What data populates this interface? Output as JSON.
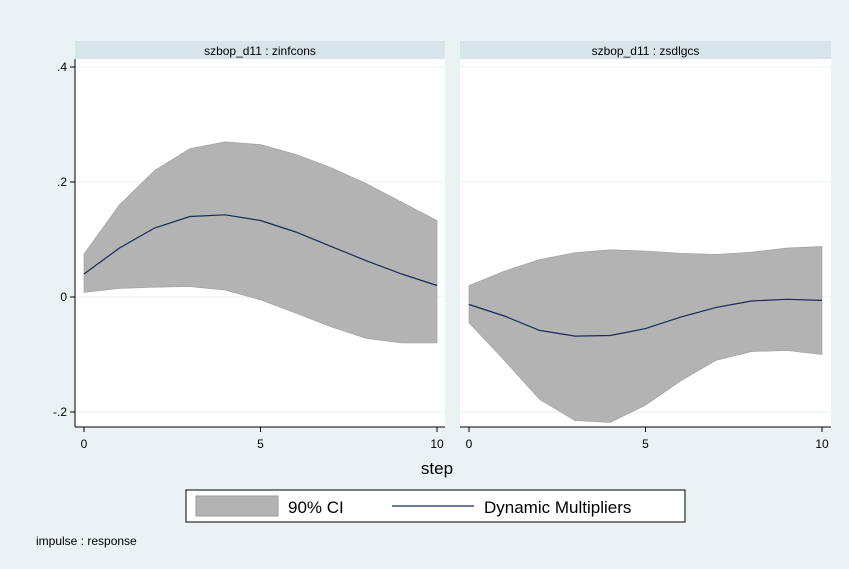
{
  "colors": {
    "outer_bg": "#eaf2f3",
    "plot_bg": "#ffffff",
    "strip_bg": "#d7e5ea",
    "ci_fill": "#b3b3b3",
    "ci_edge": "#9c9c9c",
    "line": "#1a2a55",
    "grid": "#e8f0f2",
    "text": "#000000"
  },
  "xlabel": "step",
  "note": "impulse : response",
  "legend": {
    "ci_label": "90% CI",
    "line_label": "Dynamic Multipliers",
    "placement": "bottom"
  },
  "chart_data": {
    "type": "line",
    "y_ticks": [
      -0.2,
      0,
      0.2,
      0.4
    ],
    "y_tick_labels": [
      "-.2",
      "0",
      ".2",
      ".4"
    ],
    "x_ticks": [
      0,
      5,
      10
    ],
    "x_tick_labels": [
      "0",
      "5",
      "10"
    ],
    "xlim": [
      0,
      10
    ],
    "ylim": [
      -0.22,
      0.45
    ],
    "grid": true,
    "panels": [
      {
        "title": "szbop_d11 : zinfcons",
        "x": [
          0,
          1,
          2,
          3,
          4,
          5,
          6,
          7,
          8,
          9,
          10
        ],
        "series": [
          {
            "name": "Dynamic Multipliers",
            "values": [
              0.04,
              0.085,
              0.12,
              0.14,
              0.143,
              0.133,
              0.113,
              0.088,
              0.063,
              0.04,
              0.02
            ]
          },
          {
            "name": "90% CI",
            "lower": [
              0.008,
              0.015,
              0.017,
              0.018,
              0.012,
              -0.005,
              -0.028,
              -0.052,
              -0.072,
              -0.08,
              -0.08
            ],
            "upper": [
              0.075,
              0.16,
              0.22,
              0.258,
              0.27,
              0.265,
              0.248,
              0.225,
              0.197,
              0.165,
              0.133
            ]
          }
        ]
      },
      {
        "title": "szbop_d11 : zsdlgcs",
        "x": [
          0,
          1,
          2,
          3,
          4,
          5,
          6,
          7,
          8,
          9,
          10
        ],
        "series": [
          {
            "name": "Dynamic Multipliers",
            "values": [
              -0.013,
              -0.033,
              -0.058,
              -0.068,
              -0.067,
              -0.055,
              -0.035,
              -0.018,
              -0.007,
              -0.004,
              -0.006
            ]
          },
          {
            "name": "90% CI",
            "lower": [
              -0.045,
              -0.11,
              -0.178,
              -0.215,
              -0.218,
              -0.188,
              -0.146,
              -0.11,
              -0.095,
              -0.093,
              -0.1
            ],
            "upper": [
              0.02,
              0.045,
              0.065,
              0.077,
              0.082,
              0.08,
              0.076,
              0.074,
              0.078,
              0.085,
              0.088
            ]
          }
        ]
      }
    ]
  }
}
